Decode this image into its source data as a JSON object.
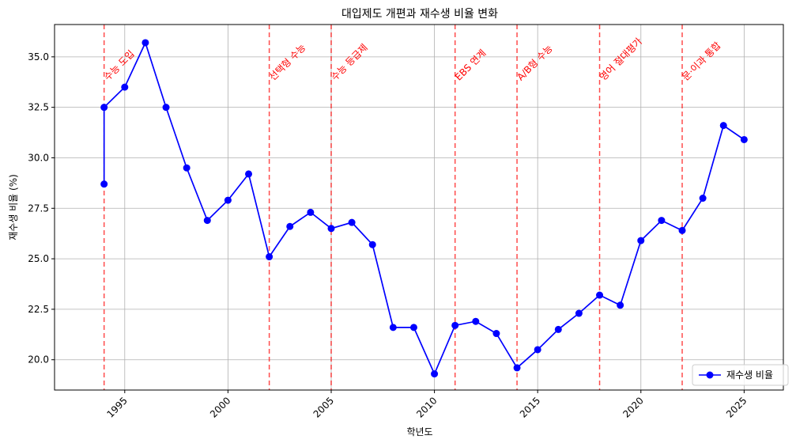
{
  "chart_data": {
    "type": "line",
    "title": "대입제도 개편과 재수생 비율 변화",
    "xlabel": "학년도",
    "ylabel": "재수생 비율 (%)",
    "xlim": [
      1991.6,
      2026.9
    ],
    "ylim": [
      18.5,
      36.6
    ],
    "x_ticks": [
      1995,
      2000,
      2005,
      2010,
      2015,
      2020,
      2025
    ],
    "y_ticks": [
      20.0,
      22.5,
      25.0,
      27.5,
      30.0,
      32.5,
      35.0
    ],
    "grid": true,
    "legend_position": "lower-right",
    "series": [
      {
        "name": "재수생 비율",
        "color": "#0000ff",
        "x": [
          1994,
          1994,
          1995,
          1996,
          1997,
          1998,
          1999,
          2000,
          2001,
          2002,
          2003,
          2004,
          2005,
          2006,
          2007,
          2008,
          2009,
          2010,
          2011,
          2012,
          2013,
          2014,
          2015,
          2016,
          2017,
          2018,
          2019,
          2020,
          2021,
          2022,
          2023,
          2024,
          2025
        ],
        "y": [
          28.7,
          32.5,
          33.5,
          35.7,
          32.5,
          29.5,
          26.9,
          27.9,
          29.2,
          25.1,
          26.6,
          27.3,
          26.5,
          26.8,
          25.7,
          21.6,
          21.6,
          19.3,
          21.7,
          21.9,
          21.3,
          19.6,
          20.5,
          21.5,
          22.3,
          23.2,
          22.7,
          25.9,
          26.9,
          26.4,
          28.0,
          31.6,
          30.9
        ]
      }
    ],
    "events": [
      {
        "x": 1994,
        "label": "수능 도입"
      },
      {
        "x": 2002,
        "label": "선택형 수능"
      },
      {
        "x": 2005,
        "label": "수능 등급제"
      },
      {
        "x": 2011,
        "label": "EBS 연계"
      },
      {
        "x": 2014,
        "label": "A/B형 수능"
      },
      {
        "x": 2018,
        "label": "영어 절대평가"
      },
      {
        "x": 2022,
        "label": "문·이과 통합"
      }
    ],
    "colors": {
      "line": "#0000ff",
      "event_line": "#ff0000",
      "grid": "#b0b0b0"
    }
  }
}
